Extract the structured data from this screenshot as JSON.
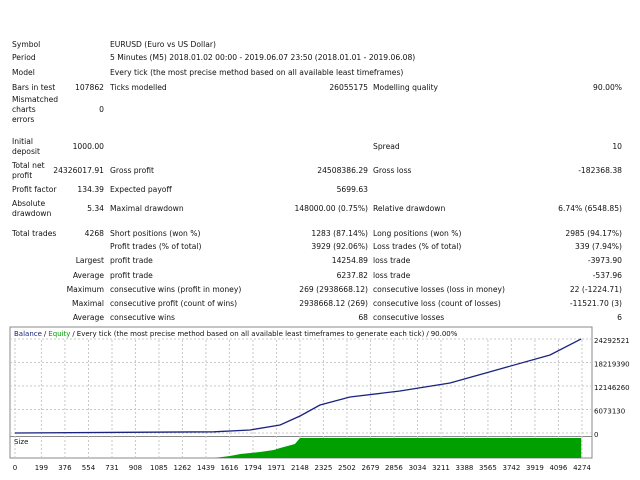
{
  "report": {
    "rows": [
      [
        "Symbol",
        null,
        "EURUSD (Euro vs US Dollar)",
        null,
        null,
        null
      ],
      [
        "Period",
        null,
        "5 Minutes (M5) 2018.01.02 00:00 - 2019.06.07 23:50 (2018.01.01 - 2019.06.08)",
        null,
        null,
        null
      ],
      [
        "Model",
        null,
        "Every tick (the most precise method based on all available least timeframes)",
        null,
        null,
        null
      ],
      [
        "Bars in test",
        "107862",
        "Ticks modelled",
        "26055175",
        "Modelling quality",
        "90.00%"
      ],
      [
        "Mismatched\ncharts\nerrors",
        "0",
        null,
        null,
        null,
        null
      ],
      [
        "Initial\ndeposit",
        "1000.00",
        null,
        null,
        "Spread",
        "10"
      ],
      [
        "Total net\nprofit",
        "24326017.91",
        "Gross profit",
        "24508386.29",
        "Gross loss",
        "-182368.38"
      ],
      [
        "Profit factor",
        "134.39",
        "Expected payoff",
        "5699.63",
        null,
        null
      ],
      [
        "Absolute\ndrawdown",
        "5.34",
        "Maximal drawdown",
        "148000.00 (0.75%)",
        "Relative drawdown",
        "6.74% (6548.85)"
      ],
      [
        "Total trades",
        "4268",
        "Short positions (won %)",
        "1283 (87.14%)",
        "Long positions (won %)",
        "2985 (94.17%)"
      ],
      [
        null,
        null,
        "Profit trades (% of total)",
        "3929 (92.06%)",
        "Loss trades (% of total)",
        "339 (7.94%)"
      ],
      [
        null,
        "Largest",
        "profit trade",
        "14254.89",
        "loss trade",
        "-3973.90"
      ],
      [
        null,
        "Average",
        "profit trade",
        "6237.82",
        "loss trade",
        "-537.96"
      ],
      [
        null,
        "Maximum",
        "consecutive wins (profit in money)",
        "269 (2938668.12)",
        "consecutive losses (loss in money)",
        "22 (-1224.71)"
      ],
      [
        null,
        "Maximal",
        "consecutive profit (count of wins)",
        "2938668.12 (269)",
        "consecutive loss (count of losses)",
        "-11521.70 (3)"
      ],
      [
        null,
        "Average",
        "consecutive wins",
        "68",
        "consecutive losses",
        "6"
      ]
    ]
  },
  "chart_data": {
    "type": "line",
    "legend": [
      {
        "name": "Balance",
        "color": "#1a237e"
      },
      {
        "name": "Equity",
        "color": "#00a000"
      }
    ],
    "legend_separator": "/",
    "subtitle": "Every tick (the most precise method based on all available least timeframes to generate each tick)",
    "quality": "90.00%",
    "color": "#1a237e",
    "x": [
      0,
      1500,
      1771,
      1998,
      2148,
      2299,
      2525,
      2902,
      3279,
      3656,
      4033,
      4268
    ],
    "values": [
      1000,
      300000,
      775000,
      2067000,
      4393000,
      7236000,
      9304000,
      10854000,
      12922000,
      16540000,
      20158000,
      24327018
    ],
    "xlim": [
      0,
      4274
    ],
    "ylim": [
      0,
      24292521
    ],
    "xticks": [
      0,
      199,
      376,
      554,
      731,
      908,
      1085,
      1262,
      1439,
      1616,
      1794,
      1971,
      2148,
      2325,
      2502,
      2679,
      2856,
      3034,
      3211,
      3388,
      3565,
      3742,
      3919,
      4096,
      4274
    ],
    "yticks": [
      0,
      6073130,
      12146260,
      18219390,
      24292521
    ],
    "grid": true,
    "size_panel": {
      "label": "Size",
      "color": "#00a000",
      "x": [
        0,
        1500,
        1620,
        1700,
        1847,
        1950,
        1998,
        2110,
        2148,
        4268
      ],
      "values": [
        0,
        0,
        0.1,
        0.2,
        0.3,
        0.4,
        0.5,
        0.7,
        1,
        1
      ],
      "ylim": [
        0,
        1
      ]
    }
  }
}
